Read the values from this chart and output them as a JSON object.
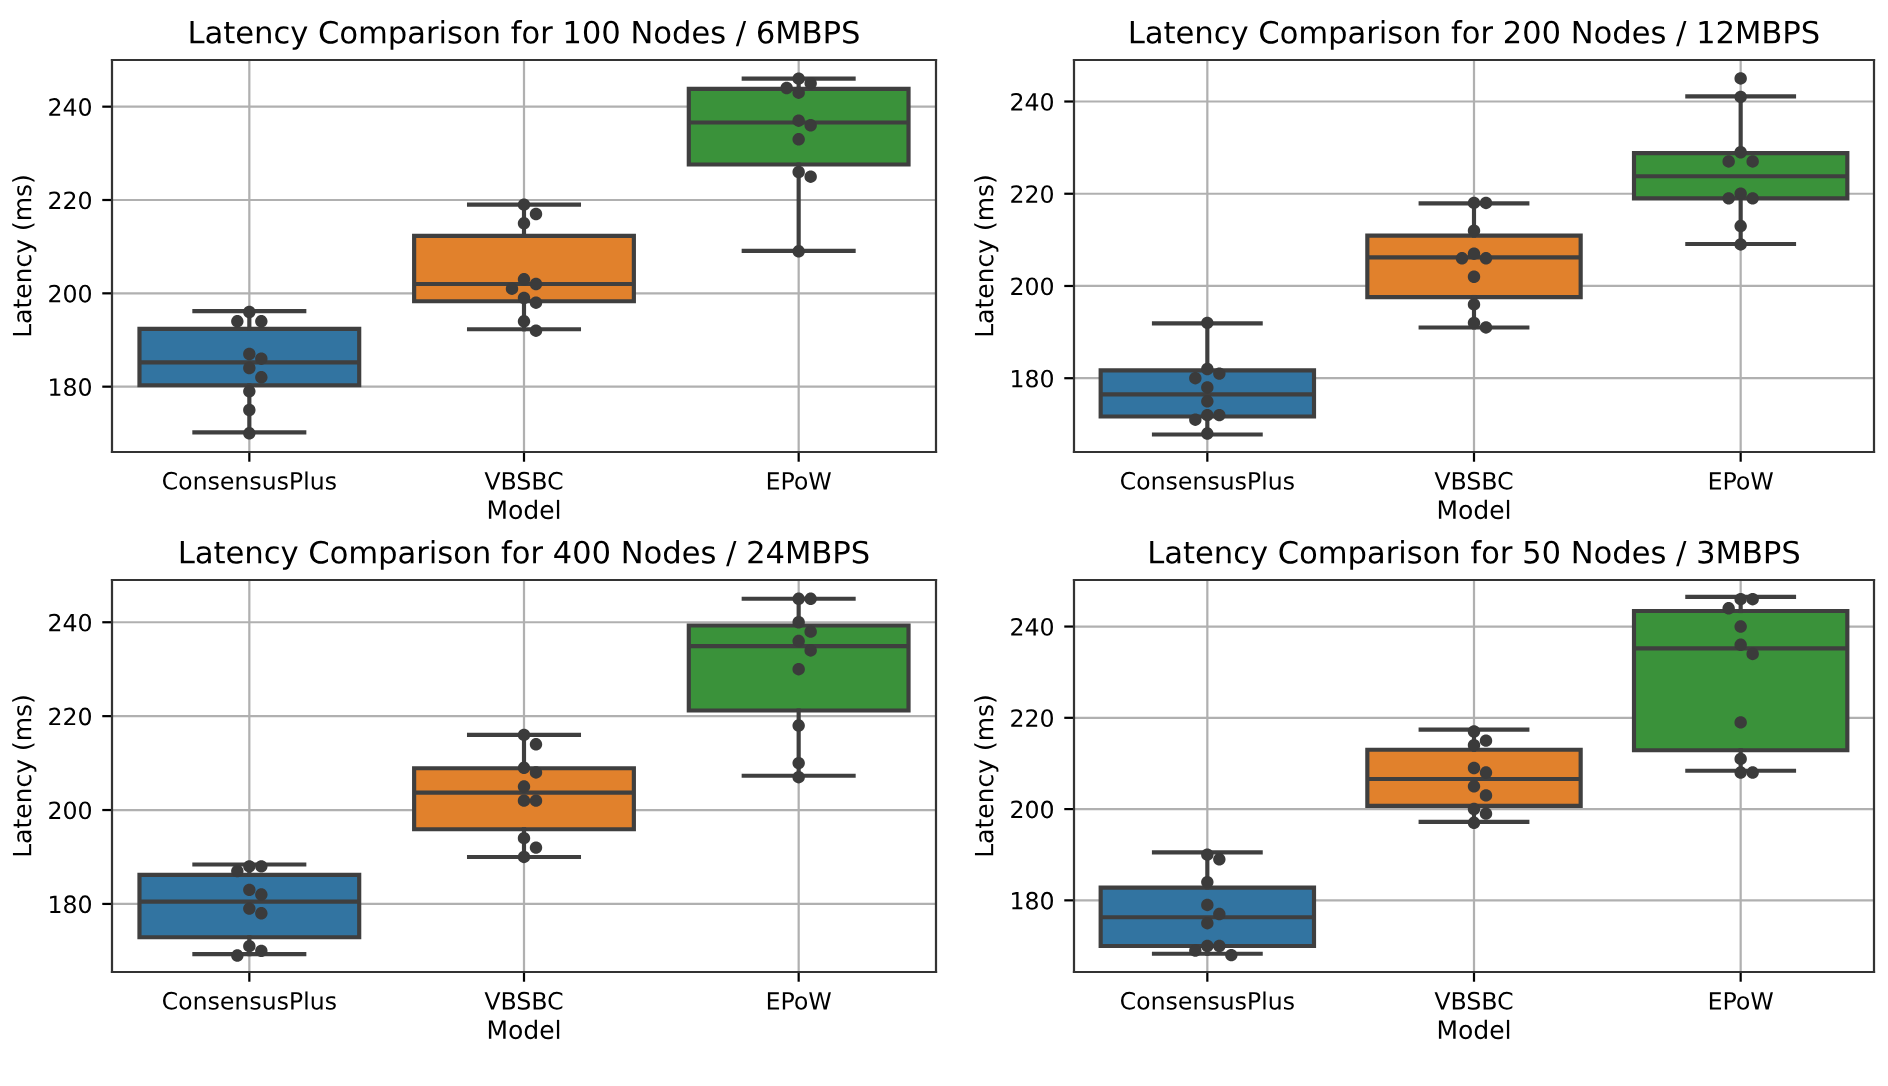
{
  "chart_data": [
    {
      "type": "box",
      "title": "Latency Comparison for 100 Nodes / 6MBPS",
      "xlabel": "Model",
      "ylabel": "Latency (ms)",
      "categories": [
        "ConsensusPlus",
        "VBSBC",
        "EPoW"
      ],
      "ylim": [
        166,
        250
      ],
      "yticks": [
        180,
        200,
        220,
        240
      ],
      "grid": true,
      "series": [
        {
          "colors": [
            "#3274a1",
            "#e1812c",
            "#3a923a"
          ],
          "boxes": [
            {
              "low": 170.2,
              "q1": 180.3,
              "median": 185.2,
              "q3": 192.4,
              "high": 196.2
            },
            {
              "low": 192.3,
              "q1": 198.3,
              "median": 202,
              "q3": 212.3,
              "high": 219
            },
            {
              "low": 209.1,
              "q1": 227.6,
              "median": 236.6,
              "q3": 243.8,
              "high": 246
            }
          ]
        },
        {
          "type": "scatter",
          "color": "#3b3b3b",
          "x": [
            "ConsensusPlus",
            "ConsensusPlus",
            "ConsensusPlus",
            "ConsensusPlus",
            "ConsensusPlus",
            "ConsensusPlus",
            "ConsensusPlus",
            "ConsensusPlus",
            "ConsensusPlus",
            "ConsensusPlus",
            "VBSBC",
            "VBSBC",
            "VBSBC",
            "VBSBC",
            "VBSBC",
            "VBSBC",
            "VBSBC",
            "VBSBC",
            "VBSBC",
            "VBSBC",
            "EPoW",
            "EPoW",
            "EPoW",
            "EPoW",
            "EPoW",
            "EPoW",
            "EPoW",
            "EPoW",
            "EPoW",
            "EPoW"
          ],
          "values": [
            196,
            194,
            194,
            187,
            186,
            184,
            182,
            179,
            175,
            170,
            219,
            217,
            215,
            203,
            202,
            201,
            199,
            198,
            194,
            192,
            246,
            245,
            244,
            243,
            237,
            236,
            233,
            226,
            225,
            209
          ]
        }
      ]
    },
    {
      "type": "box",
      "title": "Latency Comparison for 200 Nodes / 12MBPS",
      "xlabel": "Model",
      "ylabel": "Latency (ms)",
      "categories": [
        "ConsensusPlus",
        "VBSBC",
        "EPoW"
      ],
      "ylim": [
        164,
        249
      ],
      "yticks": [
        180,
        200,
        220,
        240
      ],
      "grid": true,
      "series": [
        {
          "colors": [
            "#3274a1",
            "#e1812c",
            "#3a923a"
          ],
          "boxes": [
            {
              "low": 167.8,
              "q1": 171.7,
              "median": 176.5,
              "q3": 181.7,
              "high": 191.9
            },
            {
              "low": 191,
              "q1": 197.6,
              "median": 206.2,
              "q3": 210.9,
              "high": 217.9
            },
            {
              "low": 209.1,
              "q1": 219,
              "median": 223.8,
              "q3": 228.8,
              "high": 241.1
            }
          ]
        },
        {
          "type": "scatter",
          "color": "#3b3b3b",
          "x": [
            "ConsensusPlus",
            "ConsensusPlus",
            "ConsensusPlus",
            "ConsensusPlus",
            "ConsensusPlus",
            "ConsensusPlus",
            "ConsensusPlus",
            "ConsensusPlus",
            "ConsensusPlus",
            "ConsensusPlus",
            "VBSBC",
            "VBSBC",
            "VBSBC",
            "VBSBC",
            "VBSBC",
            "VBSBC",
            "VBSBC",
            "VBSBC",
            "VBSBC",
            "VBSBC",
            "EPoW",
            "EPoW",
            "EPoW",
            "EPoW",
            "EPoW",
            "EPoW",
            "EPoW",
            "EPoW",
            "EPoW",
            "EPoW"
          ],
          "values": [
            192,
            182,
            181,
            180,
            178,
            175,
            172,
            172,
            171,
            168,
            218,
            218,
            212,
            207,
            206,
            206,
            202,
            196,
            192,
            191,
            245,
            241,
            229,
            227,
            227,
            220,
            219,
            219,
            213,
            209
          ]
        }
      ]
    },
    {
      "type": "box",
      "title": "Latency Comparison for 400 Nodes / 24MBPS",
      "xlabel": "Model",
      "ylabel": "Latency (ms)",
      "categories": [
        "ConsensusPlus",
        "VBSBC",
        "EPoW"
      ],
      "ylim": [
        165.5,
        249
      ],
      "yticks": [
        180,
        200,
        220,
        240
      ],
      "grid": true,
      "series": [
        {
          "colors": [
            "#3274a1",
            "#e1812c",
            "#3a923a"
          ],
          "boxes": [
            {
              "low": 169.3,
              "q1": 172.9,
              "median": 180.5,
              "q3": 186.2,
              "high": 188.4
            },
            {
              "low": 190,
              "q1": 195.9,
              "median": 203.7,
              "q3": 208.9,
              "high": 216
            },
            {
              "low": 207.3,
              "q1": 221.2,
              "median": 234.9,
              "q3": 239.3,
              "high": 245
            }
          ]
        },
        {
          "type": "scatter",
          "color": "#3b3b3b",
          "x": [
            "ConsensusPlus",
            "ConsensusPlus",
            "ConsensusPlus",
            "ConsensusPlus",
            "ConsensusPlus",
            "ConsensusPlus",
            "ConsensusPlus",
            "ConsensusPlus",
            "ConsensusPlus",
            "ConsensusPlus",
            "VBSBC",
            "VBSBC",
            "VBSBC",
            "VBSBC",
            "VBSBC",
            "VBSBC",
            "VBSBC",
            "VBSBC",
            "VBSBC",
            "VBSBC",
            "EPoW",
            "EPoW",
            "EPoW",
            "EPoW",
            "EPoW",
            "EPoW",
            "EPoW",
            "EPoW",
            "EPoW",
            "EPoW"
          ],
          "values": [
            188,
            188,
            187,
            183,
            182,
            179,
            178,
            171,
            170,
            169,
            216,
            214,
            209,
            208,
            205,
            202,
            202,
            194,
            192,
            190,
            245,
            245,
            240,
            238,
            236,
            234,
            230,
            218,
            210,
            207
          ]
        }
      ]
    },
    {
      "type": "box",
      "title": "Latency Comparison for 50 Nodes / 3MBPS",
      "xlabel": "Model",
      "ylabel": "Latency (ms)",
      "categories": [
        "ConsensusPlus",
        "VBSBC",
        "EPoW"
      ],
      "ylim": [
        164.3,
        250.2
      ],
      "yticks": [
        180,
        200,
        220,
        240
      ],
      "grid": true,
      "series": [
        {
          "colors": [
            "#3274a1",
            "#e1812c",
            "#3a923a"
          ],
          "boxes": [
            {
              "low": 168.3,
              "q1": 170,
              "median": 176.3,
              "q3": 182.8,
              "high": 190.5
            },
            {
              "low": 197.2,
              "q1": 200.7,
              "median": 206.6,
              "q3": 213,
              "high": 217.4
            },
            {
              "low": 208.4,
              "q1": 212.9,
              "median": 235.2,
              "q3": 243.4,
              "high": 246.5
            }
          ]
        },
        {
          "type": "scatter",
          "color": "#3b3b3b",
          "x": [
            "ConsensusPlus",
            "ConsensusPlus",
            "ConsensusPlus",
            "ConsensusPlus",
            "ConsensusPlus",
            "ConsensusPlus",
            "ConsensusPlus",
            "ConsensusPlus",
            "ConsensusPlus",
            "ConsensusPlus",
            "VBSBC",
            "VBSBC",
            "VBSBC",
            "VBSBC",
            "VBSBC",
            "VBSBC",
            "VBSBC",
            "VBSBC",
            "VBSBC",
            "VBSBC",
            "EPoW",
            "EPoW",
            "EPoW",
            "EPoW",
            "EPoW",
            "EPoW",
            "EPoW",
            "EPoW",
            "EPoW",
            "EPoW"
          ],
          "values": [
            190,
            189,
            184,
            179,
            177,
            175,
            170,
            170,
            169,
            168,
            217,
            215,
            214,
            209,
            208,
            205,
            203,
            200,
            199,
            197,
            246,
            246,
            244,
            240,
            236,
            234,
            219,
            211,
            208,
            208
          ]
        }
      ]
    }
  ]
}
